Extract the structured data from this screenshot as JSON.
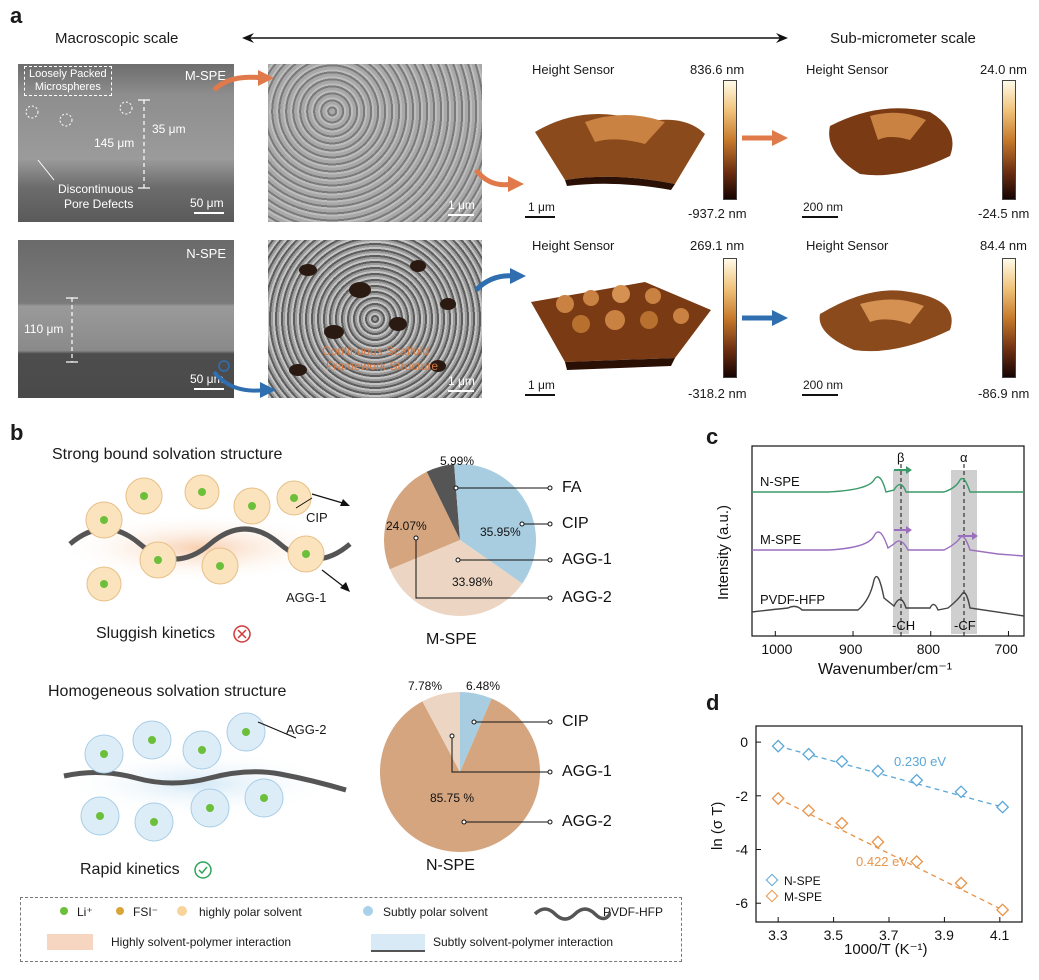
{
  "panels": {
    "a": "a",
    "b": "b",
    "c": "c",
    "d": "d"
  },
  "panel_a": {
    "macro_label": "Macroscopic scale",
    "submicro_label": "Sub-micrometer scale",
    "mspe": {
      "tag": "M-SPE",
      "loosely": "Loosely Packed",
      "microspheres": "Microspheres",
      "thickness": "145 μm",
      "pore_size": "35 μm",
      "defect1": "Discontinuous",
      "defect2": "Pore Defects",
      "scale_sem": "50 μm",
      "scale_zoom": "1 μm"
    },
    "nspe": {
      "tag": "N-SPE",
      "thickness": "110 μm",
      "scale_sem": "50 μm",
      "scale_zoom": "1 μm",
      "framework1": "Continuous Scaffold",
      "framework2": "Framework Structure"
    },
    "afm": {
      "title": "Height Sensor",
      "m1_max": "836.6 nm",
      "m1_min": "-937.2 nm",
      "m1_scale": "1 μm",
      "m2_max": "24.0 nm",
      "m2_min": "-24.5 nm",
      "m2_scale": "200 nm",
      "n1_max": "269.1 nm",
      "n1_min": "-318.2 nm",
      "n1_scale": "1 μm",
      "n2_max": "84.4 nm",
      "n2_min": "-86.9 nm",
      "n2_scale": "200 nm"
    }
  },
  "panel_b": {
    "strong_title": "Strong bound solvation structure",
    "homog_title": "Homogeneous solvation structure",
    "cip": "CIP",
    "agg1": "AGG-1",
    "agg2": "AGG-2",
    "sluggish": "Sluggish kinetics",
    "rapid": "Rapid kinetics",
    "legend": {
      "li": "Li⁺",
      "fsi": "FSI⁻",
      "high_polar": "highly polar solvent",
      "subtle_polar": "Subtly polar solvent",
      "pvdf": "PVDF-HFP",
      "high_interaction": "Highly solvent-polymer interaction",
      "subtle_interaction": "Subtly solvent-polymer interaction"
    }
  },
  "chart_data": [
    {
      "type": "pie",
      "title": "M-SPE",
      "slices": [
        {
          "name": "FA",
          "value": 5.99,
          "label": "5.99%",
          "color": "#555555"
        },
        {
          "name": "CIP",
          "value": 35.95,
          "label": "35.95%",
          "color": "#a9cde0"
        },
        {
          "name": "AGG-1",
          "value": 33.98,
          "label": "33.98%",
          "color": "#ecd6c3"
        },
        {
          "name": "AGG-2",
          "value": 24.07,
          "label": "24.07%",
          "color": "#d4a57f"
        }
      ]
    },
    {
      "type": "pie",
      "title": "N-SPE",
      "slices": [
        {
          "name": "CIP",
          "value": 6.48,
          "label": "6.48%",
          "color": "#a9cde0"
        },
        {
          "name": "AGG-2",
          "value": 85.75,
          "label": "85.75 %",
          "color": "#d4a57f"
        },
        {
          "name": "AGG-1",
          "value": 7.78,
          "label": "7.78%",
          "color": "#ecd6c3"
        }
      ]
    },
    {
      "type": "line",
      "xlabel": "Wavenumber/cm⁻¹",
      "ylabel": "Intensity (a.u.)",
      "xlim": [
        1030,
        680
      ],
      "x_ticks": [
        1000,
        900,
        800,
        700
      ],
      "annotations": {
        "beta": "β",
        "alpha": "α",
        "ch": "-CH",
        "cf": "-CF"
      },
      "series": [
        {
          "name": "N-SPE",
          "color": "#3a9a6a"
        },
        {
          "name": "M-SPE",
          "color": "#9b6fc0"
        },
        {
          "name": "PVDF-HFP",
          "color": "#444444"
        }
      ]
    },
    {
      "type": "scatter",
      "xlabel": "1000/T (K⁻¹)",
      "ylabel": "ln (σ T)",
      "xlim": [
        3.22,
        4.18
      ],
      "ylim": [
        -6.7,
        0.6
      ],
      "x_ticks": [
        "3.3",
        "3.5",
        "3.7",
        "3.9",
        "4.1"
      ],
      "y_ticks": [
        "0",
        "-2",
        "-4",
        "-6"
      ],
      "series": [
        {
          "name": "N-SPE",
          "fit": "0.230 eV",
          "color": "#5aa7d8",
          "x": [
            3.3,
            3.41,
            3.53,
            3.66,
            3.8,
            3.96,
            4.11
          ],
          "y": [
            -0.15,
            -0.45,
            -0.72,
            -1.08,
            -1.42,
            -1.85,
            -2.42
          ]
        },
        {
          "name": "M-SPE",
          "fit": "0.422 eV",
          "color": "#e8944a",
          "x": [
            3.3,
            3.41,
            3.53,
            3.66,
            3.8,
            3.96,
            4.11
          ],
          "y": [
            -2.1,
            -2.55,
            -3.02,
            -3.72,
            -4.45,
            -5.25,
            -6.25
          ]
        }
      ]
    }
  ]
}
